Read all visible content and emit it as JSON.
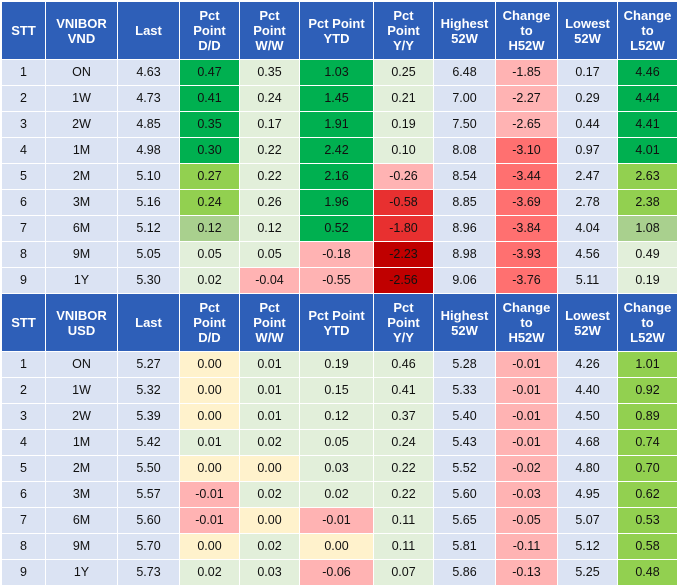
{
  "colors": {
    "header_bg": "#2e5fb8",
    "label_bg": "#dbe3f3",
    "neutral_bg": "#e2efda",
    "dark_green": "#00b050",
    "mid_green": "#92d050",
    "light_green": "#a9d08e",
    "pale_yellow": "#fff2cc",
    "light_red": "#ffb3b3",
    "mid_red": "#ff7070",
    "red": "#e83030",
    "dark_red": "#c00000"
  },
  "tables": [
    {
      "headers": [
        [
          "STT"
        ],
        [
          "VNIBOR",
          "VND"
        ],
        [
          "Last"
        ],
        [
          "Pct",
          "Point",
          "D/D"
        ],
        [
          "Pct",
          "Point",
          "W/W"
        ],
        [
          "Pct Point",
          "YTD"
        ],
        [
          "Pct",
          "Point",
          "Y/Y"
        ],
        [
          "Highest",
          "52W"
        ],
        [
          "Change",
          "to",
          "H52W"
        ],
        [
          "Lowest",
          "52W"
        ],
        [
          "Change",
          "to",
          "L52W"
        ]
      ],
      "rows": [
        {
          "stt": "1",
          "tenor": "ON",
          "last": "4.63",
          "dd": "0.47",
          "ww": "0.35",
          "ytd": "1.03",
          "yy": "0.25",
          "h52": "6.48",
          "ch52": "-1.85",
          "l52": "0.17",
          "cl52": "4.46"
        },
        {
          "stt": "2",
          "tenor": "1W",
          "last": "4.73",
          "dd": "0.41",
          "ww": "0.24",
          "ytd": "1.45",
          "yy": "0.21",
          "h52": "7.00",
          "ch52": "-2.27",
          "l52": "0.29",
          "cl52": "4.44"
        },
        {
          "stt": "3",
          "tenor": "2W",
          "last": "4.85",
          "dd": "0.35",
          "ww": "0.17",
          "ytd": "1.91",
          "yy": "0.19",
          "h52": "7.50",
          "ch52": "-2.65",
          "l52": "0.44",
          "cl52": "4.41"
        },
        {
          "stt": "4",
          "tenor": "1M",
          "last": "4.98",
          "dd": "0.30",
          "ww": "0.22",
          "ytd": "2.42",
          "yy": "0.10",
          "h52": "8.08",
          "ch52": "-3.10",
          "l52": "0.97",
          "cl52": "4.01"
        },
        {
          "stt": "5",
          "tenor": "2M",
          "last": "5.10",
          "dd": "0.27",
          "ww": "0.22",
          "ytd": "2.16",
          "yy": "-0.26",
          "h52": "8.54",
          "ch52": "-3.44",
          "l52": "2.47",
          "cl52": "2.63"
        },
        {
          "stt": "6",
          "tenor": "3M",
          "last": "5.16",
          "dd": "0.24",
          "ww": "0.26",
          "ytd": "1.96",
          "yy": "-0.58",
          "h52": "8.85",
          "ch52": "-3.69",
          "l52": "2.78",
          "cl52": "2.38"
        },
        {
          "stt": "7",
          "tenor": "6M",
          "last": "5.12",
          "dd": "0.12",
          "ww": "0.12",
          "ytd": "0.52",
          "yy": "-1.80",
          "h52": "8.96",
          "ch52": "-3.84",
          "l52": "4.04",
          "cl52": "1.08"
        },
        {
          "stt": "8",
          "tenor": "9M",
          "last": "5.05",
          "dd": "0.05",
          "ww": "0.05",
          "ytd": "-0.18",
          "yy": "-2.23",
          "h52": "8.98",
          "ch52": "-3.93",
          "l52": "4.56",
          "cl52": "0.49"
        },
        {
          "stt": "9",
          "tenor": "1Y",
          "last": "5.30",
          "dd": "0.02",
          "ww": "-0.04",
          "ytd": "-0.55",
          "yy": "-2.56",
          "h52": "9.06",
          "ch52": "-3.76",
          "l52": "5.11",
          "cl52": "0.19"
        }
      ],
      "cell_colors": [
        {
          "dd": "dark_green",
          "ww": "neutral_bg",
          "ytd": "dark_green",
          "yy": "neutral_bg",
          "ch52": "light_red",
          "cl52": "dark_green"
        },
        {
          "dd": "dark_green",
          "ww": "neutral_bg",
          "ytd": "dark_green",
          "yy": "neutral_bg",
          "ch52": "light_red",
          "cl52": "dark_green"
        },
        {
          "dd": "dark_green",
          "ww": "neutral_bg",
          "ytd": "dark_green",
          "yy": "neutral_bg",
          "ch52": "light_red",
          "cl52": "dark_green"
        },
        {
          "dd": "dark_green",
          "ww": "neutral_bg",
          "ytd": "dark_green",
          "yy": "neutral_bg",
          "ch52": "mid_red",
          "cl52": "dark_green"
        },
        {
          "dd": "mid_green",
          "ww": "neutral_bg",
          "ytd": "dark_green",
          "yy": "light_red",
          "ch52": "mid_red",
          "cl52": "mid_green"
        },
        {
          "dd": "mid_green",
          "ww": "neutral_bg",
          "ytd": "dark_green",
          "yy": "red",
          "ch52": "mid_red",
          "cl52": "mid_green"
        },
        {
          "dd": "light_green",
          "ww": "neutral_bg",
          "ytd": "dark_green",
          "yy": "red",
          "ch52": "mid_red",
          "cl52": "light_green"
        },
        {
          "dd": "neutral_bg",
          "ww": "neutral_bg",
          "ytd": "light_red",
          "yy": "dark_red",
          "ch52": "mid_red",
          "cl52": "neutral_bg"
        },
        {
          "dd": "neutral_bg",
          "ww": "light_red",
          "ytd": "light_red",
          "yy": "dark_red",
          "ch52": "mid_red",
          "cl52": "neutral_bg"
        }
      ]
    },
    {
      "headers": [
        [
          "STT"
        ],
        [
          "VNIBOR",
          "USD"
        ],
        [
          "Last"
        ],
        [
          "Pct",
          "Point",
          "D/D"
        ],
        [
          "Pct",
          "Point",
          "W/W"
        ],
        [
          "Pct Point",
          "YTD"
        ],
        [
          "Pct",
          "Point",
          "Y/Y"
        ],
        [
          "Highest",
          "52W"
        ],
        [
          "Change",
          "to",
          "H52W"
        ],
        [
          "Lowest",
          "52W"
        ],
        [
          "Change",
          "to",
          "L52W"
        ]
      ],
      "rows": [
        {
          "stt": "1",
          "tenor": "ON",
          "last": "5.27",
          "dd": "0.00",
          "ww": "0.01",
          "ytd": "0.19",
          "yy": "0.46",
          "h52": "5.28",
          "ch52": "-0.01",
          "l52": "4.26",
          "cl52": "1.01"
        },
        {
          "stt": "2",
          "tenor": "1W",
          "last": "5.32",
          "dd": "0.00",
          "ww": "0.01",
          "ytd": "0.15",
          "yy": "0.41",
          "h52": "5.33",
          "ch52": "-0.01",
          "l52": "4.40",
          "cl52": "0.92"
        },
        {
          "stt": "3",
          "tenor": "2W",
          "last": "5.39",
          "dd": "0.00",
          "ww": "0.01",
          "ytd": "0.12",
          "yy": "0.37",
          "h52": "5.40",
          "ch52": "-0.01",
          "l52": "4.50",
          "cl52": "0.89"
        },
        {
          "stt": "4",
          "tenor": "1M",
          "last": "5.42",
          "dd": "0.01",
          "ww": "0.02",
          "ytd": "0.05",
          "yy": "0.24",
          "h52": "5.43",
          "ch52": "-0.01",
          "l52": "4.68",
          "cl52": "0.74"
        },
        {
          "stt": "5",
          "tenor": "2M",
          "last": "5.50",
          "dd": "0.00",
          "ww": "0.00",
          "ytd": "0.03",
          "yy": "0.22",
          "h52": "5.52",
          "ch52": "-0.02",
          "l52": "4.80",
          "cl52": "0.70"
        },
        {
          "stt": "6",
          "tenor": "3M",
          "last": "5.57",
          "dd": "-0.01",
          "ww": "0.02",
          "ytd": "0.02",
          "yy": "0.22",
          "h52": "5.60",
          "ch52": "-0.03",
          "l52": "4.95",
          "cl52": "0.62"
        },
        {
          "stt": "7",
          "tenor": "6M",
          "last": "5.60",
          "dd": "-0.01",
          "ww": "0.00",
          "ytd": "-0.01",
          "yy": "0.11",
          "h52": "5.65",
          "ch52": "-0.05",
          "l52": "5.07",
          "cl52": "0.53"
        },
        {
          "stt": "8",
          "tenor": "9M",
          "last": "5.70",
          "dd": "0.00",
          "ww": "0.02",
          "ytd": "0.00",
          "yy": "0.11",
          "h52": "5.81",
          "ch52": "-0.11",
          "l52": "5.12",
          "cl52": "0.58"
        },
        {
          "stt": "9",
          "tenor": "1Y",
          "last": "5.73",
          "dd": "0.02",
          "ww": "0.03",
          "ytd": "-0.06",
          "yy": "0.07",
          "h52": "5.86",
          "ch52": "-0.13",
          "l52": "5.25",
          "cl52": "0.48"
        }
      ],
      "cell_colors": [
        {
          "dd": "pale_yellow",
          "ww": "neutral_bg",
          "ytd": "neutral_bg",
          "yy": "neutral_bg",
          "ch52": "light_red",
          "cl52": "mid_green"
        },
        {
          "dd": "pale_yellow",
          "ww": "neutral_bg",
          "ytd": "neutral_bg",
          "yy": "neutral_bg",
          "ch52": "light_red",
          "cl52": "mid_green"
        },
        {
          "dd": "pale_yellow",
          "ww": "neutral_bg",
          "ytd": "neutral_bg",
          "yy": "neutral_bg",
          "ch52": "light_red",
          "cl52": "mid_green"
        },
        {
          "dd": "neutral_bg",
          "ww": "neutral_bg",
          "ytd": "neutral_bg",
          "yy": "neutral_bg",
          "ch52": "light_red",
          "cl52": "mid_green"
        },
        {
          "dd": "pale_yellow",
          "ww": "pale_yellow",
          "ytd": "neutral_bg",
          "yy": "neutral_bg",
          "ch52": "light_red",
          "cl52": "mid_green"
        },
        {
          "dd": "light_red",
          "ww": "neutral_bg",
          "ytd": "neutral_bg",
          "yy": "neutral_bg",
          "ch52": "light_red",
          "cl52": "mid_green"
        },
        {
          "dd": "light_red",
          "ww": "pale_yellow",
          "ytd": "light_red",
          "yy": "neutral_bg",
          "ch52": "light_red",
          "cl52": "mid_green"
        },
        {
          "dd": "pale_yellow",
          "ww": "neutral_bg",
          "ytd": "pale_yellow",
          "yy": "neutral_bg",
          "ch52": "light_red",
          "cl52": "mid_green"
        },
        {
          "dd": "neutral_bg",
          "ww": "neutral_bg",
          "ytd": "light_red",
          "yy": "neutral_bg",
          "ch52": "light_red",
          "cl52": "mid_green"
        }
      ]
    }
  ]
}
